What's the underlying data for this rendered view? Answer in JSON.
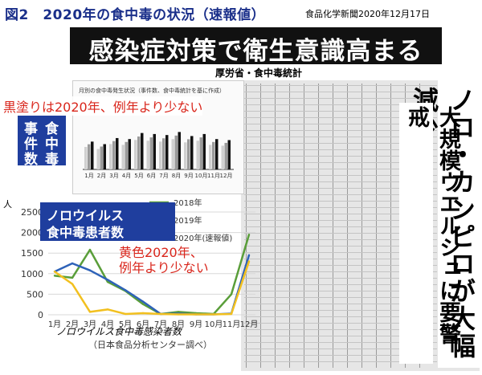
{
  "figure_title": "図2　2020年の食中毒の状況（速報値）",
  "source": "食品化学新聞2020年12月17日",
  "headline": "感染症対策で衛生意識高まる",
  "subhead": "厚労省・食中毒統計",
  "vertical_title_1": "ノロ・カンピロが大幅減少",
  "vertical_title_2": "大規模ウエルシュに要警戒",
  "bar_panel": {
    "caption": "月別の食中毒発生状況（事件数、食中毒統計を基に作成）",
    "red_note": "黒塗りは2020年、例年より少ない",
    "box_chars": [
      "事",
      "食",
      "件",
      "中",
      "数",
      "毒"
    ],
    "months": [
      "1月",
      "2月",
      "3月",
      "4月",
      "5月",
      "6月",
      "7月",
      "8月",
      "9月",
      "10月",
      "11月",
      "12月"
    ]
  },
  "line_panel": {
    "title_line1": "ノロウイルス",
    "title_line2": "食中毒患者数",
    "red_note_line1": "黄色2020年、",
    "red_note_line2": "例年より少ない",
    "footer": "ノロウイルス食中毒感染者数",
    "footer2": "（日本食品分析センター調べ）"
  },
  "chart_data": {
    "type": "line",
    "unit_label": "人",
    "categories": [
      "1月",
      "2月",
      "3月",
      "4月",
      "5月",
      "6月",
      "7月",
      "8月",
      "9月",
      "10月",
      "11月",
      "12月"
    ],
    "ylim": [
      0,
      2500
    ],
    "yticks": [
      0,
      500,
      1000,
      1500,
      2000,
      2500
    ],
    "series": [
      {
        "name": "2018年",
        "color": "#5a9e3a",
        "values": [
          950,
          900,
          1580,
          800,
          580,
          260,
          20,
          70,
          40,
          20,
          500,
          1950
        ]
      },
      {
        "name": "2019年",
        "color": "#2e62b8",
        "values": [
          1050,
          1250,
          1080,
          850,
          600,
          320,
          20,
          30,
          10,
          10,
          30,
          1450
        ]
      },
      {
        "name": "2020年(速報値)",
        "color": "#f2c01f",
        "values": [
          1050,
          750,
          70,
          130,
          20,
          40,
          20,
          10,
          10,
          10,
          20,
          1300
        ]
      }
    ],
    "grid": true,
    "legend_position": "top-right"
  }
}
